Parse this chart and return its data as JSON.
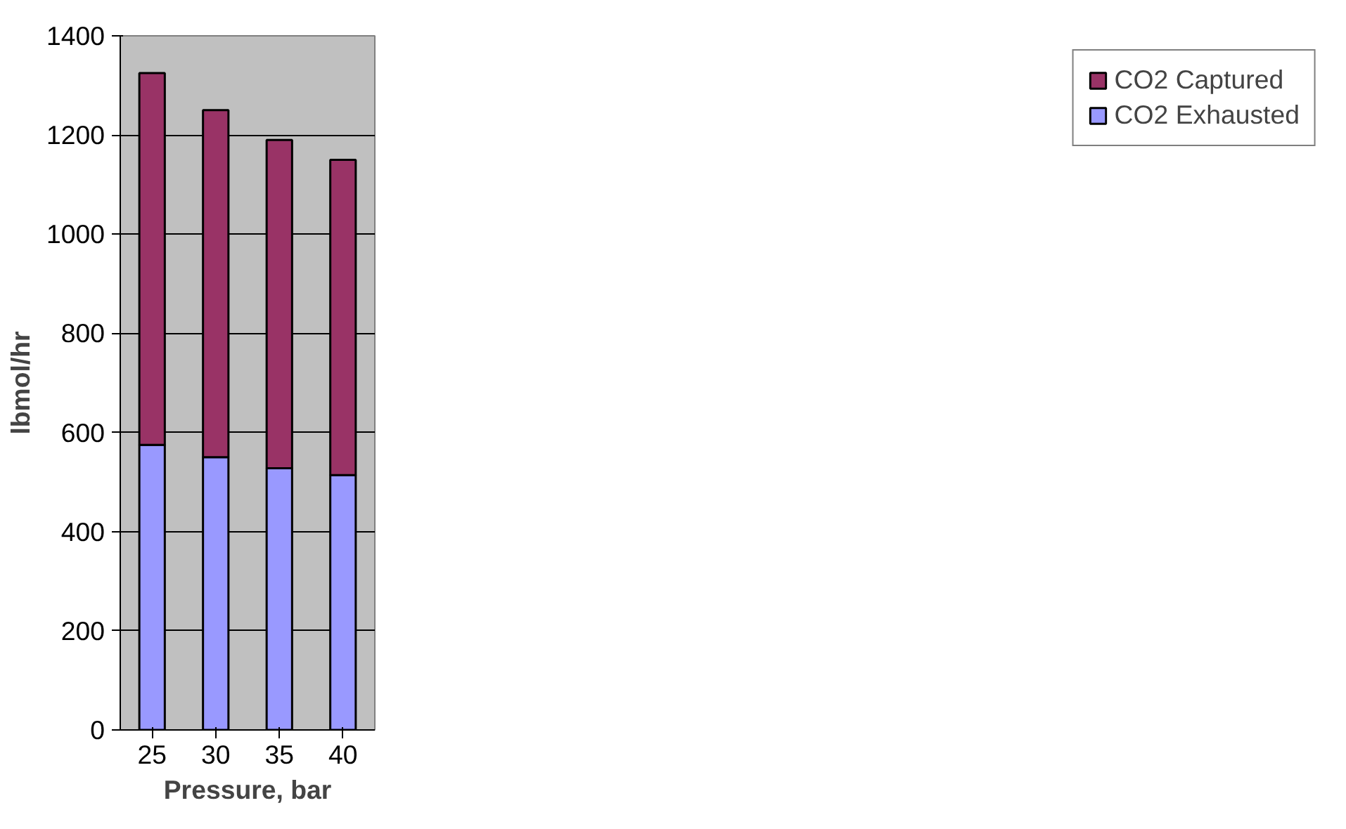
{
  "chart_data": {
    "type": "bar",
    "stacked": true,
    "xlabel": "Pressure, bar",
    "ylabel": "lbmol/hr",
    "categories": [
      "25",
      "30",
      "35",
      "40"
    ],
    "series": [
      {
        "name": "CO2 Exhausted",
        "color": "#9999ff",
        "values": [
          575,
          550,
          528,
          514
        ]
      },
      {
        "name": "CO2 Captured",
        "color": "#993366",
        "values": [
          750,
          700,
          662,
          636
        ]
      }
    ],
    "ylim": [
      0,
      1400
    ],
    "yticks": [
      0,
      200,
      400,
      600,
      800,
      1000,
      1200,
      1400
    ],
    "grid": "y",
    "legend": "right"
  }
}
